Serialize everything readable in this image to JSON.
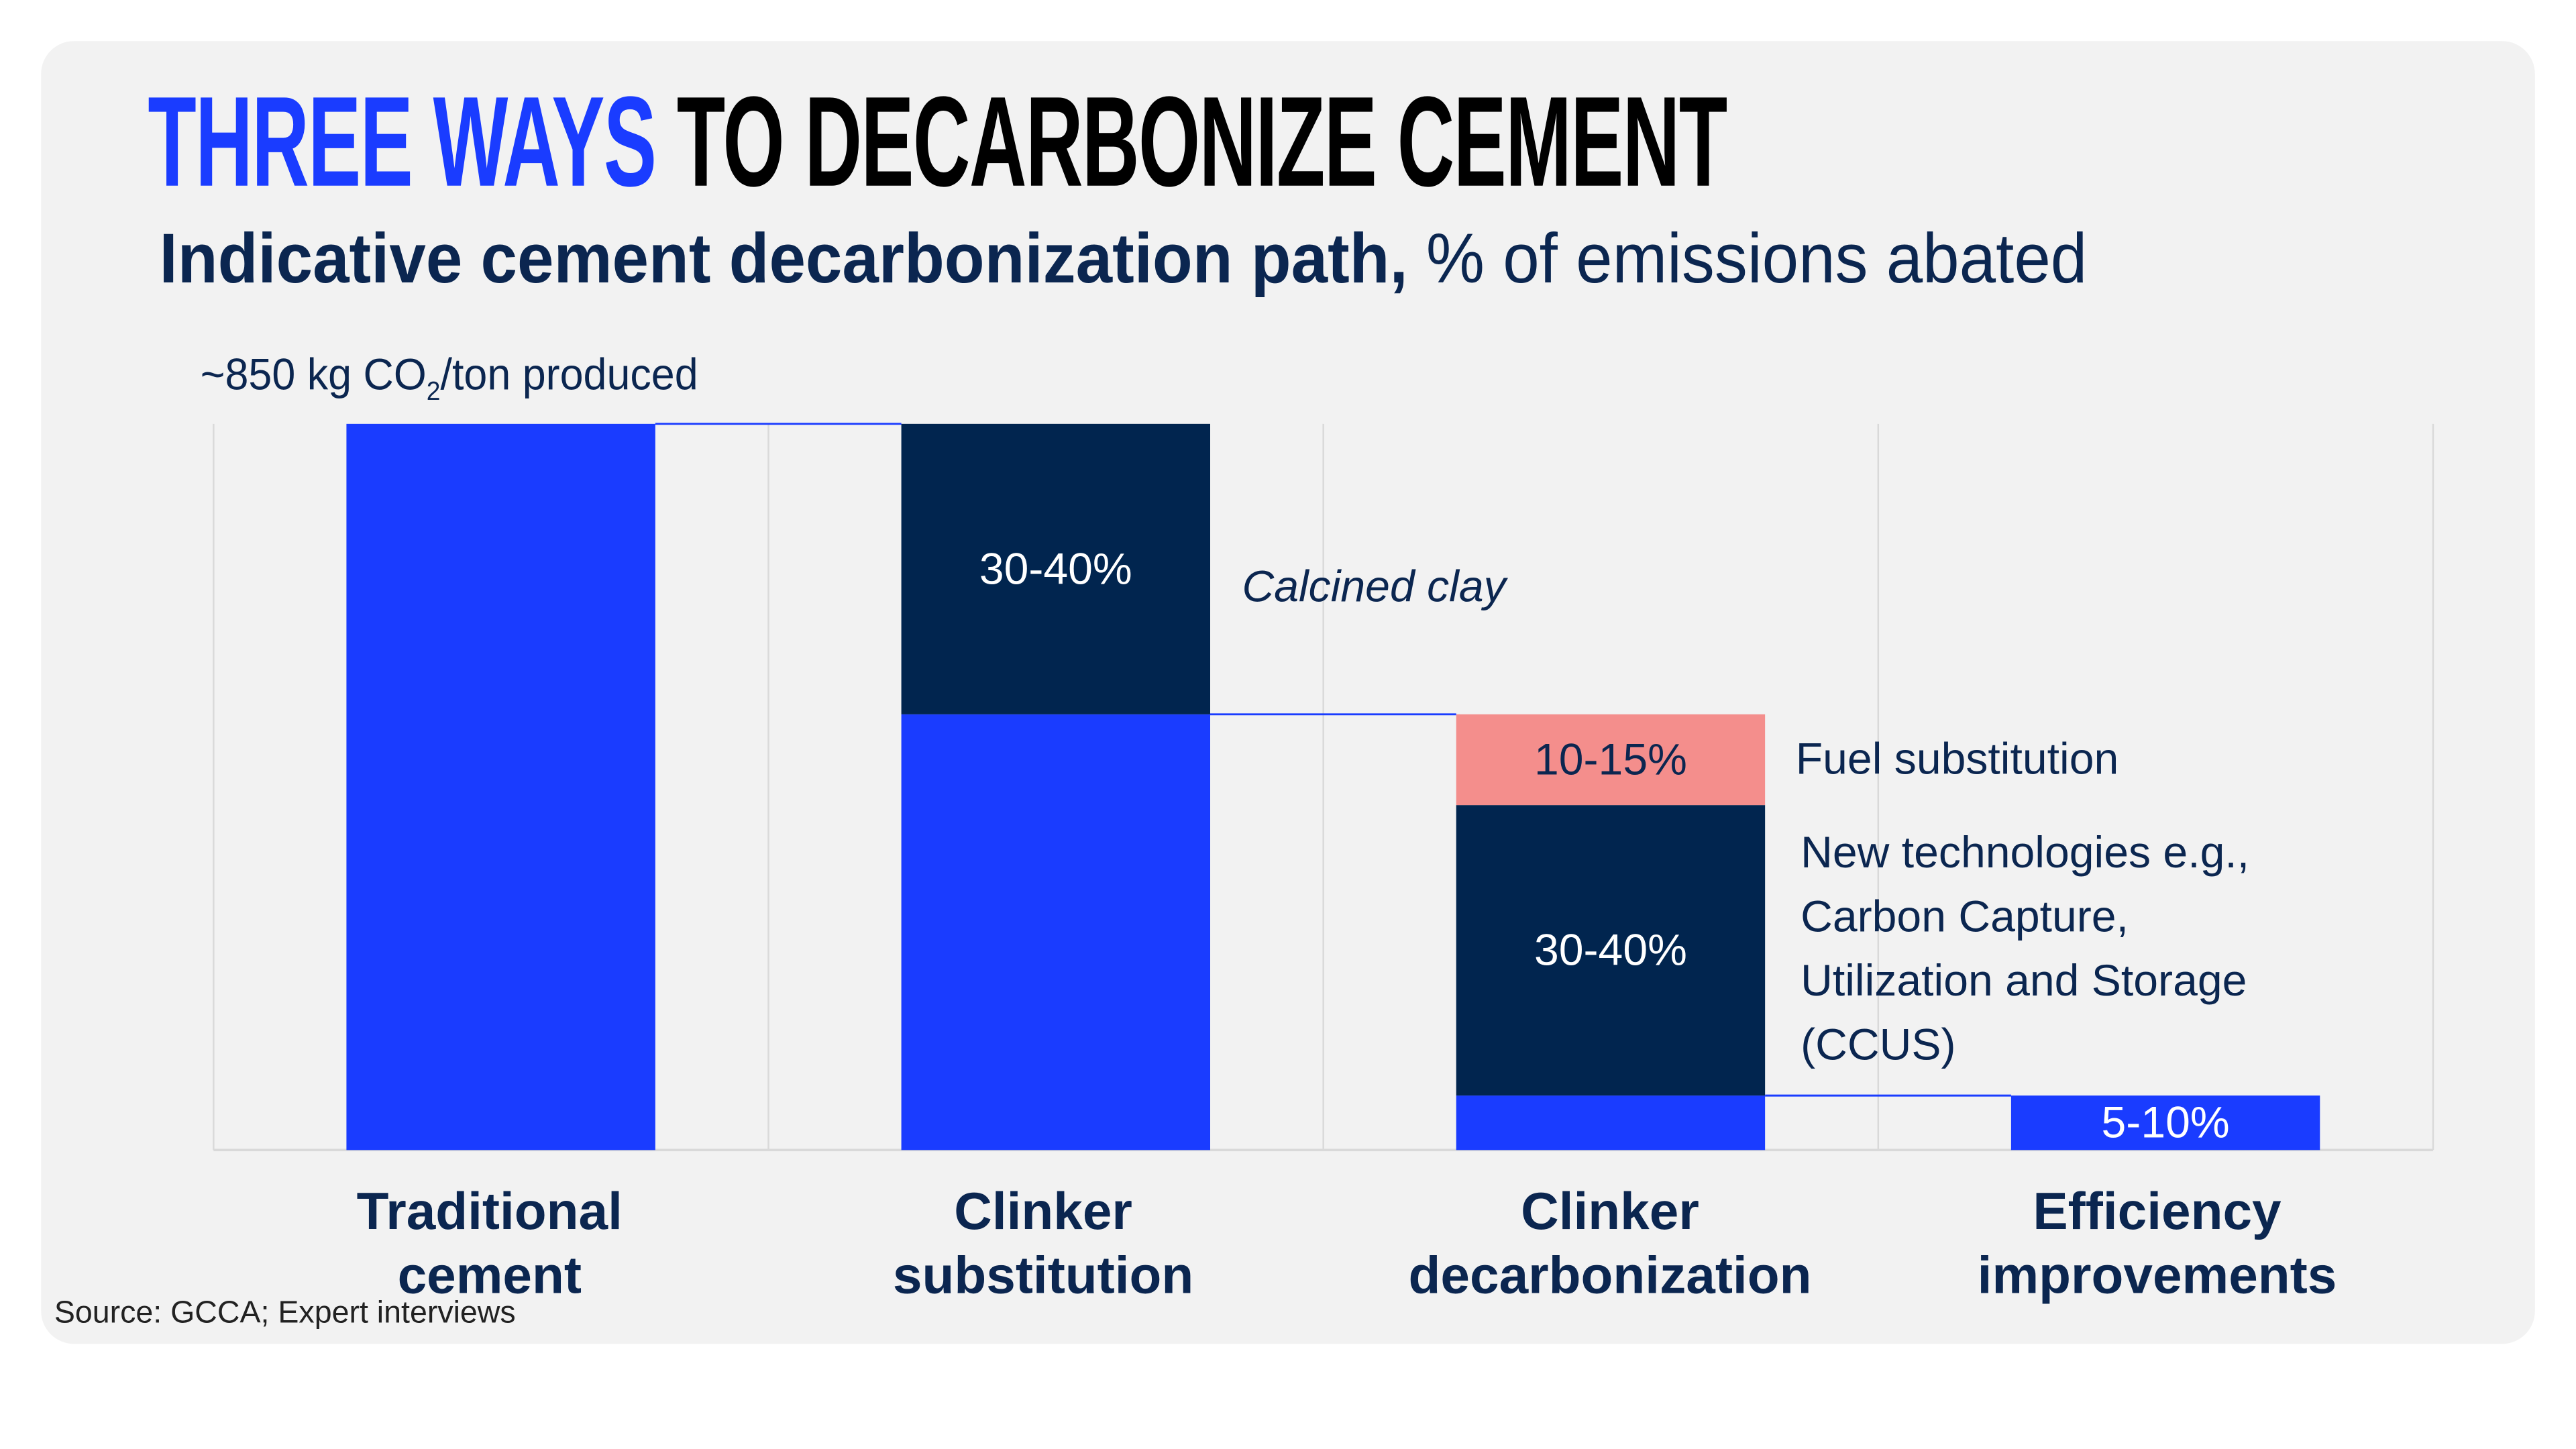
{
  "title": {
    "highlight": "THREE WAYS",
    "rest": "TO DECARBONIZE CEMENT"
  },
  "subtitle": {
    "bold": "Indicative cement decarbonization path,",
    "normal": " % of emissions abated"
  },
  "unit_label": {
    "pre": "~850 kg CO",
    "sub": "2",
    "post": "/ton produced"
  },
  "source": "Source: GCCA; Expert interviews",
  "colors": {
    "blue": "#1a3cff",
    "navy": "#01254f",
    "pink": "#f48e8c",
    "grid": "#d9d9d9",
    "background": "#f2f2f2"
  },
  "chart_data": {
    "type": "bar",
    "subtype": "waterfall",
    "ylim": [
      0,
      100
    ],
    "grid": true,
    "categories": [
      "Traditional cement",
      "Clinker substitution",
      "Clinker decarbonization",
      "Efficiency improvements"
    ],
    "category_lines": [
      [
        "Traditional",
        "cement"
      ],
      [
        "Clinker",
        "substitution"
      ],
      [
        "Clinker",
        "decarbonization"
      ],
      [
        "Efficiency",
        "improvements"
      ]
    ],
    "bars": [
      {
        "segments": [
          {
            "from": 0,
            "to": 100,
            "color": "blue",
            "label": ""
          }
        ]
      },
      {
        "segments": [
          {
            "from": 0,
            "to": 60,
            "color": "blue",
            "label": ""
          },
          {
            "from": 60,
            "to": 100,
            "color": "navy",
            "label": "30-40%"
          }
        ]
      },
      {
        "segments": [
          {
            "from": 0,
            "to": 7.5,
            "color": "blue",
            "label": ""
          },
          {
            "from": 7.5,
            "to": 47.5,
            "color": "navy",
            "label": "30-40%"
          },
          {
            "from": 47.5,
            "to": 60,
            "color": "pink",
            "label": "10-15%"
          }
        ]
      },
      {
        "segments": [
          {
            "from": 0,
            "to": 7.5,
            "color": "blue",
            "label": "5-10%"
          }
        ]
      }
    ],
    "connectors": [
      100,
      60,
      7.5
    ],
    "annotations": {
      "calcined_clay": "Calcined clay",
      "fuel_substitution": "Fuel substitution",
      "new_tech": [
        "New technologies e.g.,",
        "Carbon Capture,",
        "Utilization and Storage",
        "(CCUS)"
      ]
    }
  }
}
